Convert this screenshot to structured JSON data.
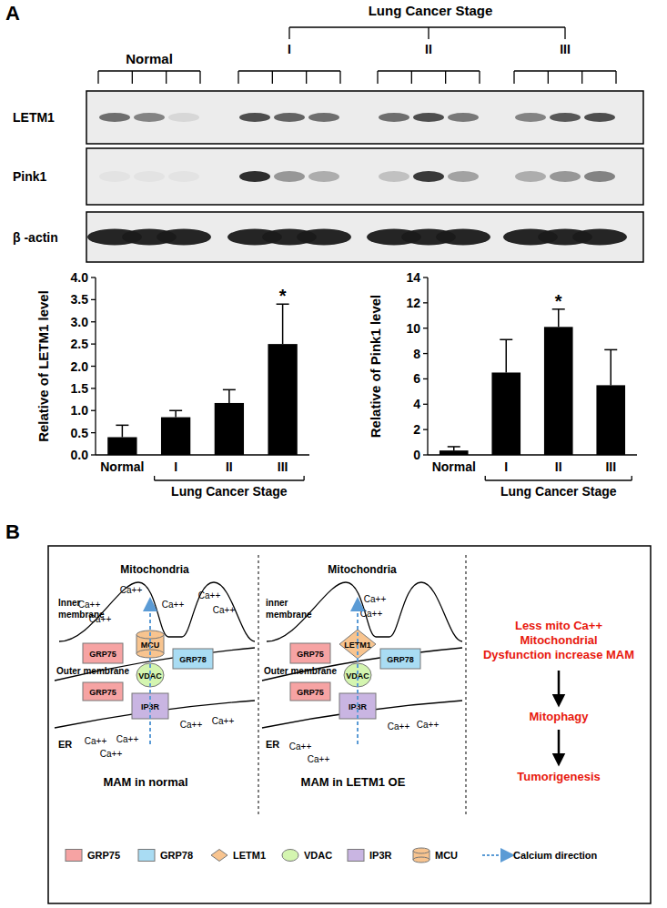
{
  "panel_a": {
    "label": "A",
    "group_title": "Lung Cancer Stage",
    "groups": [
      "Normal",
      "I",
      "II",
      "III"
    ],
    "blot": {
      "rows": [
        {
          "label": "LETM1",
          "intensity": [
            0.6,
            0.5,
            0.1,
            0.75,
            0.65,
            0.6,
            0.6,
            0.75,
            0.55,
            0.5,
            0.7,
            0.75
          ]
        },
        {
          "label": "Pink1",
          "intensity": [
            0.04,
            0.04,
            0.04,
            0.9,
            0.4,
            0.3,
            0.2,
            0.85,
            0.35,
            0.3,
            0.4,
            0.5
          ]
        },
        {
          "label": "β -actin",
          "intensity": [
            0.95,
            0.95,
            0.95,
            0.95,
            0.95,
            0.95,
            0.95,
            0.95,
            0.95,
            0.95,
            0.95,
            0.95
          ]
        }
      ]
    }
  },
  "chart_data": [
    {
      "type": "bar",
      "y_label": "Relative of LETM1 level",
      "categories": [
        "Normal",
        "I",
        "II",
        "III"
      ],
      "values": [
        0.4,
        0.85,
        1.17,
        2.5
      ],
      "errors": [
        0.27,
        0.15,
        0.3,
        0.9
      ],
      "color": "#000000",
      "ylim": [
        0,
        4
      ],
      "yticks": [
        {
          "value": 0,
          "label": "0.0"
        },
        {
          "value": 0.5,
          "label": "0.5"
        },
        {
          "value": 1,
          "label": "1.0"
        },
        {
          "value": 1.5,
          "label": "1.5"
        },
        {
          "value": 2,
          "label": "2.0"
        },
        {
          "value": 2.5,
          "label": "2.5"
        },
        {
          "value": 3,
          "label": "3.0"
        },
        {
          "value": 3.5,
          "label": "3.5"
        },
        {
          "value": 4,
          "label": "4.0"
        }
      ],
      "x_group": {
        "label": "Lung Cancer Stage",
        "from": 1,
        "to": 3
      },
      "annotations": [
        {
          "text": "*",
          "category": 3
        }
      ]
    },
    {
      "type": "bar",
      "y_label": "Relative of Pink1 level",
      "categories": [
        "Normal",
        "I",
        "II",
        "III"
      ],
      "values": [
        0.35,
        6.5,
        10.1,
        5.5
      ],
      "errors": [
        0.3,
        2.6,
        1.4,
        2.8
      ],
      "color": "#000000",
      "ylim": [
        0,
        14
      ],
      "yticks": [
        0,
        2,
        4,
        6,
        8,
        10,
        12,
        14
      ],
      "x_group": {
        "label": "Lung Cancer Stage",
        "from": 1,
        "to": 3
      },
      "annotations": [
        {
          "text": "*",
          "category": 2
        }
      ]
    }
  ],
  "panel_b": {
    "label": "B",
    "diagrams": [
      {
        "title": "MAM in normal",
        "mito_label": "Mitochondria",
        "inner_label": "Inner membrane",
        "outer_label": "Outer membrane",
        "er_label": "ER",
        "ion": "Ca++",
        "proteins": [
          "GRP75",
          "MCU",
          "GRP78",
          "VDAC",
          "GRP75",
          "IP3R"
        ]
      },
      {
        "title": "MAM in LETM1 OE",
        "mito_label": "Mitochondria",
        "inner_label": "inner membrane",
        "outer_label": "Outer membrane",
        "er_label": "ER",
        "ion": "Ca++",
        "proteins": [
          "GRP75",
          "LETM1",
          "GRP78",
          "VDAC",
          "GRP75",
          "IP3R"
        ]
      }
    ],
    "outcome": {
      "color": "#e8190e",
      "lines": [
        "Less mito Ca++",
        "Mitochondrial",
        "Dysfunction increase MAM"
      ],
      "steps": [
        "Mitophagy",
        "Tumorigenesis"
      ]
    },
    "legend": [
      {
        "label": "GRP75",
        "color": "#f6a3a3",
        "marker": "square"
      },
      {
        "label": "GRP78",
        "color": "#a9dcf3",
        "marker": "square"
      },
      {
        "label": "LETM1",
        "color": "#f8c48f",
        "marker": "diamond"
      },
      {
        "label": "VDAC",
        "color": "#d4f5b0",
        "marker": "circle"
      },
      {
        "label": "IP3R",
        "color": "#c9b5e2",
        "marker": "square"
      },
      {
        "label": "MCU",
        "color": "#f8c48f",
        "marker": "cylinder"
      },
      {
        "label": "Calcium direction",
        "color": "#5b9bd5",
        "marker": "arrow"
      }
    ]
  }
}
